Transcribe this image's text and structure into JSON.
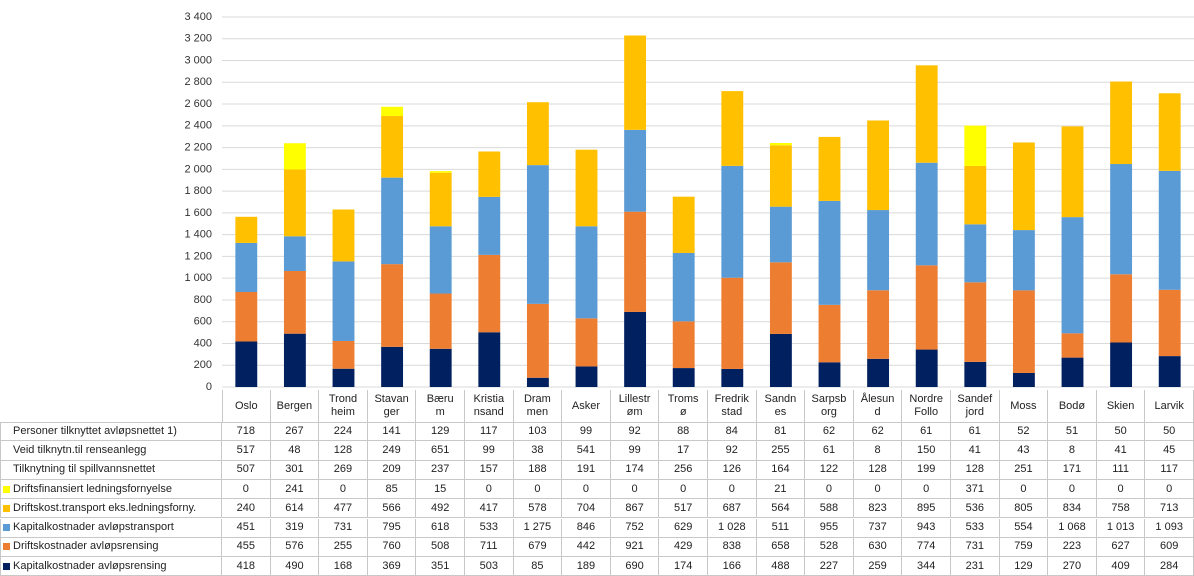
{
  "chart_data": {
    "type": "bar",
    "stacked": true,
    "categories": [
      "Oslo",
      "Bergen",
      "Trond\nheim",
      "Stavan\nger",
      "Bæru\nm",
      "Kristia\nnsand",
      "Dram\nmen",
      "Asker",
      "Lillestr\nøm",
      "Troms\nø",
      "Fredrik\nstad",
      "Sandn\nes",
      "Sarpsb\norg",
      "Ålesun\nd",
      "Nordre\nFollo",
      "Sandef\njord",
      "Moss",
      "Bodø",
      "Skien",
      "Larvik"
    ],
    "table_rows": [
      {
        "name": "Personer tilknyttet avløpsnettet 1)",
        "values": [
          718,
          267,
          224,
          141,
          129,
          117,
          103,
          99,
          92,
          88,
          84,
          81,
          62,
          62,
          61,
          61,
          52,
          51,
          50,
          50
        ]
      },
      {
        "name": "Veid tilknytn.til renseanlegg",
        "values": [
          517,
          48,
          128,
          249,
          651,
          99,
          38,
          541,
          99,
          17,
          92,
          255,
          61,
          8,
          150,
          41,
          43,
          8,
          41,
          45
        ]
      },
      {
        "name": "Tilknytning til spillvannsnettet",
        "values": [
          507,
          301,
          269,
          209,
          237,
          157,
          188,
          191,
          174,
          256,
          126,
          164,
          122,
          128,
          199,
          128,
          251,
          171,
          111,
          117
        ]
      }
    ],
    "series": [
      {
        "name": "Driftsfinansiert ledningsfornyelse",
        "color": "#ffff00",
        "values": [
          0,
          241,
          0,
          85,
          15,
          0,
          0,
          0,
          0,
          0,
          0,
          21,
          0,
          0,
          0,
          371,
          0,
          0,
          0,
          0
        ]
      },
      {
        "name": "Driftskost.transport eks.ledningsforny.",
        "color": "#ffc000",
        "values": [
          240,
          614,
          477,
          566,
          492,
          417,
          578,
          704,
          867,
          517,
          687,
          564,
          588,
          823,
          895,
          536,
          805,
          834,
          758,
          713
        ]
      },
      {
        "name": "Kapitalkostnader avløpstransport",
        "color": "#5b9bd5",
        "values": [
          451,
          319,
          731,
          795,
          618,
          533,
          1275,
          846,
          752,
          629,
          1028,
          511,
          955,
          737,
          943,
          533,
          554,
          1068,
          1013,
          1093
        ],
        "value_labels": [
          "451",
          "319",
          "731",
          "795",
          "618",
          "533",
          "1 275",
          "846",
          "752",
          "629",
          "1 028",
          "511",
          "955",
          "737",
          "943",
          "533",
          "554",
          "1 068",
          "1 013",
          "1 093"
        ]
      },
      {
        "name": "Driftskostnader avløpsrensing",
        "color": "#ed7d31",
        "values": [
          455,
          576,
          255,
          760,
          508,
          711,
          679,
          442,
          921,
          429,
          838,
          658,
          528,
          630,
          774,
          731,
          759,
          223,
          627,
          609
        ]
      },
      {
        "name": "Kapitalkostnader avløpsrensing",
        "color": "#002060",
        "values": [
          418,
          490,
          168,
          369,
          351,
          503,
          85,
          189,
          690,
          174,
          166,
          488,
          227,
          259,
          344,
          231,
          129,
          270,
          409,
          284
        ]
      }
    ],
    "ylim": [
      0,
      3400
    ],
    "yticks": [
      0,
      200,
      400,
      600,
      800,
      {
        "value": 1000,
        "label": "1 000"
      },
      {
        "value": 1200,
        "label": "1 200"
      },
      {
        "value": 1400,
        "label": "1 400"
      },
      {
        "value": 1600,
        "label": "1 600"
      },
      {
        "value": 1800,
        "label": "1 800"
      },
      {
        "value": 2000,
        "label": "2 000"
      },
      {
        "value": 2200,
        "label": "2 200"
      },
      {
        "value": 2400,
        "label": "2 400"
      },
      {
        "value": 2600,
        "label": "2 600"
      },
      {
        "value": 2800,
        "label": "2 800"
      },
      {
        "value": 3000,
        "label": "3 000"
      },
      {
        "value": 3200,
        "label": "3 200"
      },
      {
        "value": 3400,
        "label": "3 400"
      }
    ],
    "grid": true
  }
}
